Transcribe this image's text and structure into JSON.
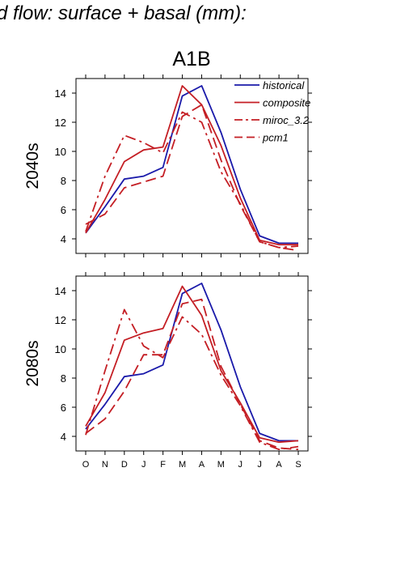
{
  "figure": {
    "title": "d flow: surface + basal (mm):",
    "scenario": "A1B"
  },
  "chart_data": [
    {
      "type": "line",
      "ylabel": "2040s",
      "ylim": [
        3,
        15
      ],
      "yticks": [
        4,
        6,
        8,
        10,
        12,
        14
      ],
      "categories": [
        "O",
        "N",
        "D",
        "J",
        "F",
        "M",
        "A",
        "M",
        "J",
        "J",
        "A",
        "S"
      ],
      "show_xtick_labels": false,
      "legend_position": "top-right",
      "colors": {
        "historical": "#1a1aaa",
        "composite": "#c41e24",
        "miroc_3.2": "#c41e24",
        "pcm1": "#c41e24"
      },
      "series": [
        {
          "name": "historical",
          "style": "solid",
          "values": [
            4.4,
            6.2,
            8.1,
            8.3,
            8.9,
            13.8,
            14.5,
            11.3,
            7.4,
            4.2,
            3.7,
            3.7
          ]
        },
        {
          "name": "composite",
          "style": "solid",
          "values": [
            4.4,
            6.7,
            9.3,
            10.1,
            10.3,
            14.5,
            13.2,
            10.4,
            6.8,
            3.9,
            3.6,
            3.6
          ]
        },
        {
          "name": "miroc_3.2",
          "style": "dashdot",
          "values": [
            4.5,
            8.3,
            11.1,
            10.6,
            9.9,
            12.7,
            12.0,
            8.6,
            6.4,
            3.8,
            3.4,
            3.5
          ]
        },
        {
          "name": "pcm1",
          "style": "dashed",
          "values": [
            5.0,
            5.7,
            7.5,
            7.9,
            8.3,
            12.4,
            13.2,
            9.4,
            6.3,
            3.8,
            3.4,
            3.2
          ]
        }
      ]
    },
    {
      "type": "line",
      "ylabel": "2080s",
      "ylim": [
        3,
        15
      ],
      "yticks": [
        4,
        6,
        8,
        10,
        12,
        14
      ],
      "categories": [
        "O",
        "N",
        "D",
        "J",
        "F",
        "M",
        "A",
        "M",
        "J",
        "J",
        "A",
        "S"
      ],
      "show_xtick_labels": true,
      "colors": {
        "historical": "#1a1aaa",
        "composite": "#c41e24",
        "miroc_3.2": "#c41e24",
        "pcm1": "#c41e24"
      },
      "series": [
        {
          "name": "historical",
          "style": "solid",
          "values": [
            4.5,
            6.2,
            8.1,
            8.3,
            8.9,
            13.8,
            14.5,
            11.3,
            7.4,
            4.2,
            3.7,
            3.7
          ]
        },
        {
          "name": "composite",
          "style": "solid",
          "values": [
            4.7,
            7.0,
            10.6,
            11.1,
            11.4,
            14.3,
            12.3,
            8.5,
            6.3,
            3.9,
            3.6,
            3.7
          ]
        },
        {
          "name": "miroc_3.2",
          "style": "dashdot",
          "values": [
            4.1,
            8.5,
            12.7,
            10.2,
            9.4,
            12.2,
            11.0,
            8.2,
            6.1,
            3.6,
            3.1,
            3.3
          ]
        },
        {
          "name": "pcm1",
          "style": "dashed",
          "values": [
            4.2,
            5.2,
            7.1,
            9.6,
            9.6,
            13.1,
            13.4,
            8.8,
            6.2,
            3.7,
            3.2,
            3.1
          ]
        }
      ]
    }
  ]
}
